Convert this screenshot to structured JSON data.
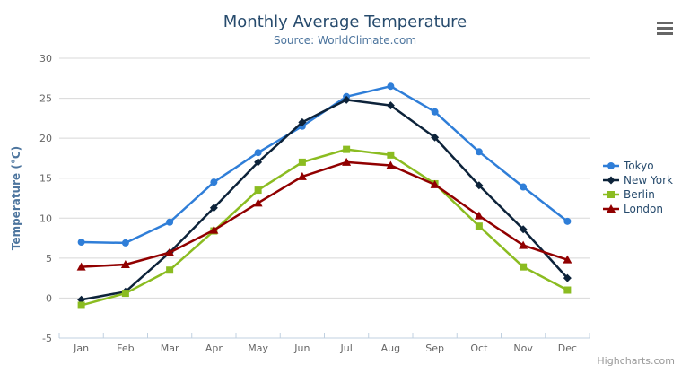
{
  "chart_data": {
    "type": "line",
    "title": "Monthly Average Temperature",
    "subtitle": "Source: WorldClimate.com",
    "xlabel": "",
    "ylabel": "Temperature (°C)",
    "categories": [
      "Jan",
      "Feb",
      "Mar",
      "Apr",
      "May",
      "Jun",
      "Jul",
      "Aug",
      "Sep",
      "Oct",
      "Nov",
      "Dec"
    ],
    "ylim": [
      -5,
      30
    ],
    "ytick_step": 5,
    "grid": true,
    "legend_position": "right",
    "series": [
      {
        "name": "Tokyo",
        "color": "#2f7ed8",
        "marker": "circle",
        "values": [
          7.0,
          6.9,
          9.5,
          14.5,
          18.2,
          21.5,
          25.2,
          26.5,
          23.3,
          18.3,
          13.9,
          9.6
        ]
      },
      {
        "name": "New York",
        "color": "#0d233a",
        "marker": "diamond",
        "values": [
          -0.2,
          0.8,
          5.7,
          11.3,
          17.0,
          22.0,
          24.8,
          24.1,
          20.1,
          14.1,
          8.6,
          2.5
        ]
      },
      {
        "name": "Berlin",
        "color": "#8bbc21",
        "marker": "square",
        "values": [
          -0.9,
          0.6,
          3.5,
          8.4,
          13.5,
          17.0,
          18.6,
          17.9,
          14.3,
          9.0,
          3.9,
          1.0
        ]
      },
      {
        "name": "London",
        "color": "#910000",
        "marker": "triangle",
        "values": [
          3.9,
          4.2,
          5.7,
          8.5,
          11.9,
          15.2,
          17.0,
          16.6,
          14.2,
          10.3,
          6.6,
          4.8
        ]
      }
    ],
    "style": {
      "grid_color": "#d8d8d8",
      "axis_line_color": "#c0d0e0",
      "axis_label_color": "#666666",
      "axis_title_color": "#4d759e",
      "title_color": "#274b6d",
      "subtitle_color": "#4d759e",
      "legend_text_color": "#274b6d"
    }
  },
  "credits": {
    "label": "Highcharts.com"
  },
  "context_menu_button": {
    "icon": "hamburger"
  }
}
